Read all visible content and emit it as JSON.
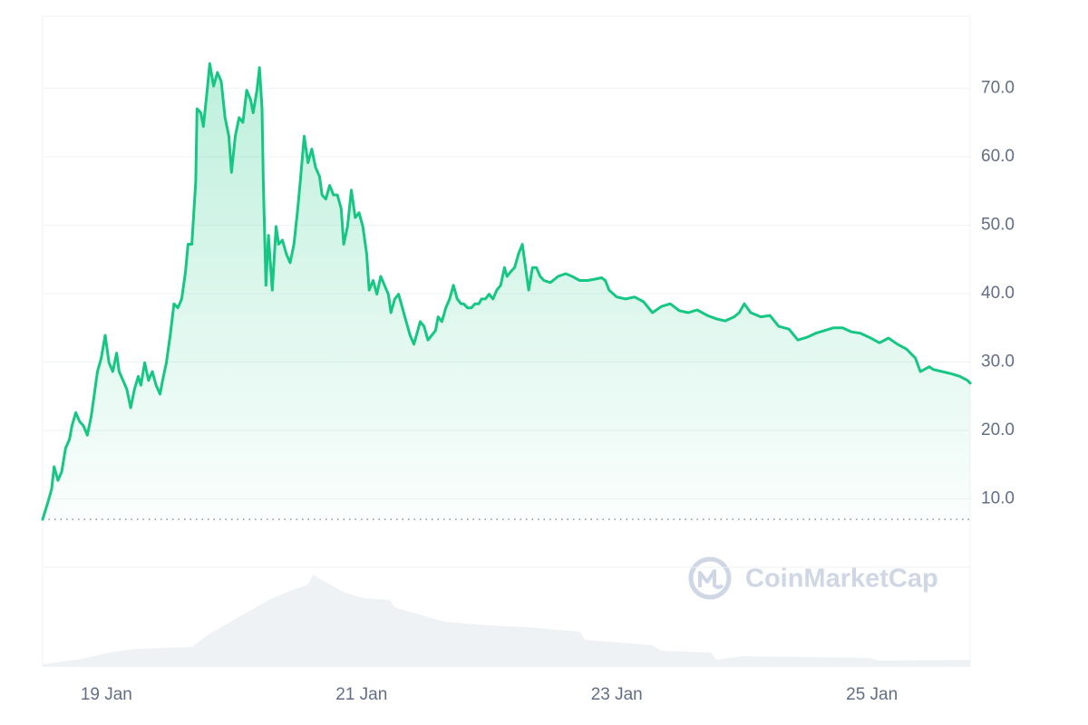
{
  "chart_data": {
    "type": "line",
    "series": [
      {
        "color": "#16c784",
        "x": [
          18.5,
          18.54,
          18.57,
          18.59,
          18.62,
          18.65,
          18.68,
          18.71,
          18.73,
          18.76,
          18.79,
          18.82,
          18.85,
          18.88,
          18.9,
          18.93,
          18.96,
          18.99,
          19.02,
          19.05,
          19.08,
          19.1,
          19.13,
          19.16,
          19.19,
          19.22,
          19.25,
          19.27,
          19.3,
          19.33,
          19.36,
          19.39,
          19.42,
          19.44,
          19.47,
          19.5,
          19.53,
          19.56,
          19.59,
          19.62,
          19.64,
          19.67,
          19.7,
          19.71,
          19.74,
          19.76,
          19.79,
          19.81,
          19.84,
          19.87,
          19.9,
          19.93,
          19.96,
          19.98,
          20.01,
          20.04,
          20.07,
          20.1,
          20.13,
          20.15,
          20.18,
          20.2,
          20.22,
          20.23,
          20.25,
          20.27,
          20.3,
          20.33,
          20.35,
          20.38,
          20.41,
          20.44,
          20.47,
          20.5,
          20.52,
          20.55,
          20.58,
          20.61,
          20.64,
          20.67,
          20.69,
          20.72,
          20.75,
          20.78,
          20.81,
          20.84,
          20.86,
          20.89,
          20.92,
          20.95,
          20.98,
          21.01,
          21.04,
          21.06,
          21.09,
          21.12,
          21.15,
          21.18,
          21.21,
          21.23,
          21.26,
          21.29,
          21.32,
          21.35,
          21.38,
          21.41,
          21.43,
          21.46,
          21.49,
          21.52,
          21.55,
          21.58,
          21.6,
          21.63,
          21.66,
          21.69,
          21.72,
          21.75,
          21.78,
          21.8,
          21.83,
          21.86,
          21.89,
          21.92,
          21.94,
          21.97,
          22.0,
          22.03,
          22.06,
          22.09,
          22.12,
          22.14,
          22.17,
          22.2,
          22.23,
          22.26,
          22.29,
          22.31,
          22.34,
          22.37,
          22.4,
          22.43,
          22.48,
          22.54,
          22.6,
          22.65,
          22.71,
          22.77,
          22.83,
          22.88,
          22.91,
          22.94,
          23.0,
          23.07,
          23.14,
          23.21,
          23.28,
          23.35,
          23.42,
          23.49,
          23.56,
          23.63,
          23.71,
          23.78,
          23.85,
          23.92,
          23.96,
          24.0,
          24.05,
          24.13,
          24.2,
          24.27,
          24.35,
          24.42,
          24.49,
          24.56,
          24.63,
          24.7,
          24.77,
          24.84,
          24.91,
          24.98,
          25.06,
          25.13,
          25.2,
          25.27,
          25.34,
          25.38,
          25.45,
          25.48,
          25.55,
          25.62,
          25.69,
          25.75,
          25.77
        ],
        "values": [
          7.0,
          9.4,
          11.4,
          14.7,
          12.7,
          14.0,
          17.4,
          18.7,
          20.7,
          22.6,
          21.3,
          20.7,
          19.3,
          22.0,
          24.6,
          28.6,
          30.6,
          33.9,
          29.9,
          28.6,
          31.3,
          28.6,
          27.3,
          26.0,
          23.3,
          26.0,
          27.9,
          26.6,
          29.9,
          27.3,
          28.6,
          26.6,
          25.3,
          27.3,
          29.9,
          33.9,
          38.5,
          37.9,
          39.2,
          43.2,
          47.2,
          47.2,
          56.4,
          67.0,
          66.4,
          64.4,
          69.7,
          73.6,
          70.3,
          72.3,
          71.0,
          65.7,
          63.0,
          57.7,
          63.0,
          65.7,
          65.0,
          69.7,
          68.3,
          66.4,
          69.7,
          73.0,
          67.0,
          56.4,
          41.2,
          48.5,
          40.5,
          49.8,
          47.2,
          47.8,
          45.8,
          44.5,
          47.2,
          52.4,
          56.4,
          63.0,
          59.1,
          61.1,
          58.4,
          57.1,
          54.4,
          53.8,
          55.8,
          54.4,
          54.4,
          52.4,
          47.2,
          49.8,
          55.1,
          51.1,
          51.8,
          49.8,
          45.8,
          40.5,
          41.9,
          39.9,
          42.5,
          41.2,
          39.9,
          37.2,
          39.2,
          39.9,
          37.9,
          35.9,
          33.9,
          32.6,
          33.9,
          35.9,
          35.2,
          33.2,
          33.9,
          34.6,
          36.6,
          35.9,
          37.9,
          39.2,
          41.2,
          39.2,
          38.5,
          38.5,
          37.9,
          37.9,
          38.5,
          38.5,
          39.2,
          39.2,
          39.9,
          39.2,
          40.5,
          41.2,
          43.8,
          42.5,
          43.2,
          43.8,
          45.8,
          47.2,
          43.2,
          40.5,
          43.8,
          43.8,
          42.5,
          41.9,
          41.6,
          42.5,
          42.9,
          42.5,
          41.9,
          41.9,
          42.1,
          42.3,
          41.9,
          40.5,
          39.5,
          39.2,
          39.5,
          38.8,
          37.2,
          38.1,
          38.5,
          37.5,
          37.2,
          37.6,
          36.8,
          36.3,
          36.0,
          36.6,
          37.2,
          38.5,
          37.2,
          36.6,
          36.8,
          35.2,
          34.8,
          33.2,
          33.6,
          34.2,
          34.6,
          35.0,
          35.0,
          34.4,
          34.2,
          33.6,
          32.8,
          33.5,
          32.6,
          31.9,
          30.6,
          28.6,
          29.3,
          28.9,
          28.6,
          28.3,
          27.9,
          27.3,
          26.9
        ]
      }
    ],
    "volume": {
      "color": "#eff2f5",
      "x": [
        18.5,
        18.81,
        19.02,
        19.23,
        19.67,
        19.8,
        20.01,
        20.3,
        20.44,
        20.58,
        20.62,
        20.69,
        20.87,
        21.01,
        21.22,
        21.26,
        21.5,
        21.65,
        22.0,
        22.29,
        22.71,
        22.75,
        23.28,
        23.35,
        23.74,
        23.78,
        23.99,
        24.98,
        25.06,
        25.77
      ],
      "values": [
        2,
        8,
        15,
        19,
        21,
        35,
        52,
        75,
        83,
        90,
        101,
        95,
        81,
        75,
        73,
        65,
        55,
        49,
        45,
        43,
        38,
        29,
        23,
        17,
        15,
        7,
        11,
        9,
        6,
        7
      ],
      "ylim": [
        0,
        109
      ]
    },
    "baseline": 7.0,
    "xlim": [
      18.5,
      25.77
    ],
    "xticks": [
      {
        "value": 19,
        "label": "19 Jan"
      },
      {
        "value": 21,
        "label": "21 Jan"
      },
      {
        "value": 23,
        "label": "23 Jan"
      },
      {
        "value": 25,
        "label": "25 Jan"
      }
    ],
    "ylim": [
      0,
      80.5
    ],
    "yticks": [
      {
        "value": 10,
        "label": "10.0"
      },
      {
        "value": 20,
        "label": "20.0"
      },
      {
        "value": 30,
        "label": "30.0"
      },
      {
        "value": 40,
        "label": "40.0"
      },
      {
        "value": 50,
        "label": "50.0"
      },
      {
        "value": 60,
        "label": "60.0"
      },
      {
        "value": 70,
        "label": "70.0"
      }
    ],
    "grid": true,
    "watermark": "CoinMarketCap"
  }
}
